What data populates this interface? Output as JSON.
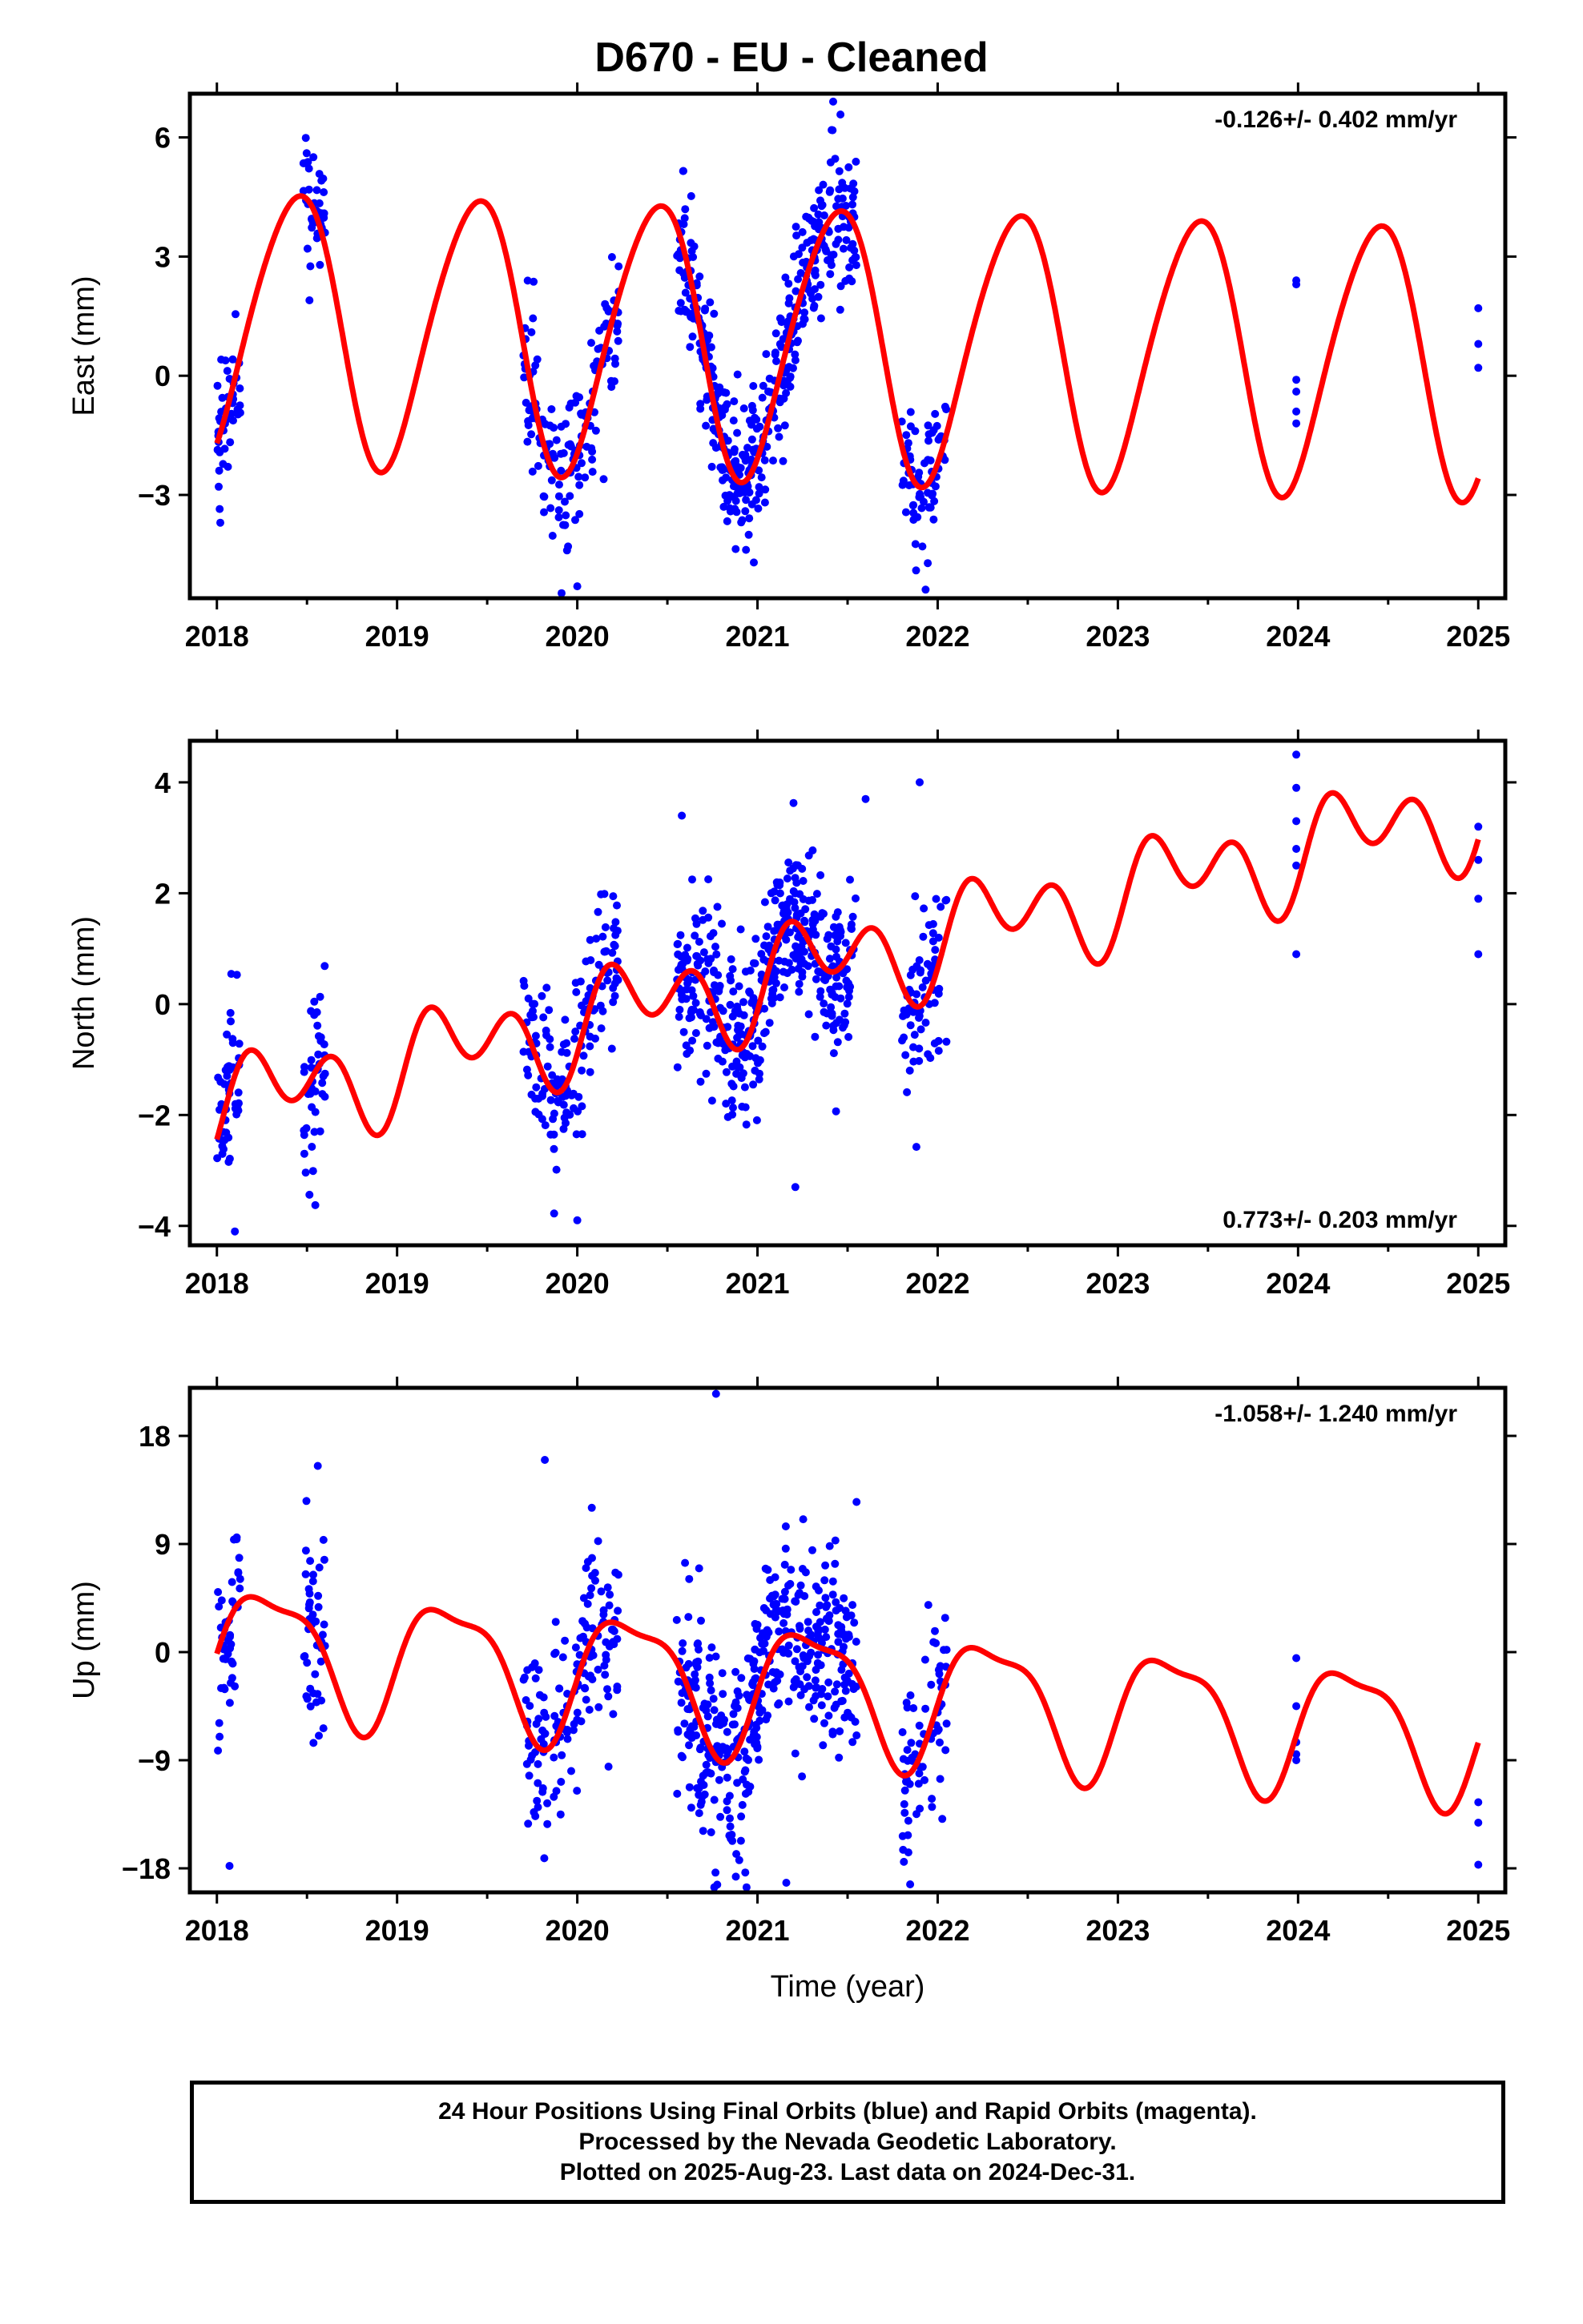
{
  "title": "D670  - EU - Cleaned",
  "footer": {
    "line1": "24 Hour Positions Using Final Orbits (blue) and Rapid Orbits (magenta).",
    "line2": "Processed by the Nevada Geodetic Laboratory.",
    "line3": "Plotted on 2025-Aug-23. Last data on 2024-Dec-31."
  },
  "colors": {
    "points": "#0000ff",
    "model": "#ff0000",
    "axes": "#000000"
  },
  "chart_data": [
    {
      "type": "scatter",
      "ylabel": "East (mm)",
      "xlabel": "",
      "rate_label": "-0.126+/- 0.402 mm/yr",
      "rate_position": "top-right",
      "xlim": [
        2017.85,
        2025.15
      ],
      "ylim": [
        -5.6,
        7.1
      ],
      "xticks": [
        2018,
        2019,
        2020,
        2021,
        2022,
        2023,
        2024,
        2025
      ],
      "yticks": [
        -3,
        0,
        3,
        6
      ],
      "grid": false,
      "model": {
        "offset": 1.3,
        "trend": -0.126,
        "amp1": 3.4,
        "phase1": -1.15,
        "amp2": 0.35,
        "phase2": 0.3,
        "noise": 0.9
      },
      "clusters": [
        [
          2018.0,
          2018.13,
          45
        ],
        [
          2018.48,
          2018.6,
          45
        ],
        [
          2019.7,
          2020.23,
          150
        ],
        [
          2020.55,
          2021.55,
          420
        ],
        [
          2021.8,
          2022.05,
          70
        ]
      ],
      "isolated": [
        [
          2023.99,
          2.3
        ],
        [
          2023.99,
          2.4
        ],
        [
          2023.99,
          -0.1
        ],
        [
          2023.99,
          -0.4
        ],
        [
          2023.99,
          -0.9
        ],
        [
          2023.99,
          -1.2
        ],
        [
          2025.0,
          1.7
        ],
        [
          2025.0,
          0.8
        ],
        [
          2025.0,
          0.2
        ]
      ],
      "extremes": [
        [
          2020.0,
          -5.3
        ],
        [
          2021.42,
          6.9
        ],
        [
          2021.88,
          -4.9
        ],
        [
          2020.98,
          -4.7
        ]
      ]
    },
    {
      "type": "scatter",
      "ylabel": "North (mm)",
      "xlabel": "",
      "rate_label": "0.773+/- 0.203 mm/yr",
      "rate_position": "bottom-right",
      "xlim": [
        2017.85,
        2025.15
      ],
      "ylim": [
        -4.35,
        4.75
      ],
      "xticks": [
        2018,
        2019,
        2020,
        2021,
        2022,
        2023,
        2024,
        2025
      ],
      "yticks": [
        -4,
        -2,
        0,
        2,
        4
      ],
      "grid": false,
      "model": {
        "offset": -1.9,
        "trend": 0.773,
        "amp1": 0.55,
        "phase1": -0.55,
        "amp2": 0.65,
        "phase2": -0.4,
        "noise": 0.8
      },
      "clusters": [
        [
          2018.0,
          2018.13,
          45
        ],
        [
          2018.48,
          2018.6,
          45
        ],
        [
          2019.7,
          2020.23,
          150
        ],
        [
          2020.55,
          2021.55,
          420
        ],
        [
          2021.8,
          2022.05,
          70
        ]
      ],
      "isolated": [
        [
          2023.99,
          4.5
        ],
        [
          2023.99,
          3.9
        ],
        [
          2023.99,
          3.3
        ],
        [
          2023.99,
          2.8
        ],
        [
          2023.99,
          2.5
        ],
        [
          2023.99,
          0.9
        ],
        [
          2025.0,
          3.2
        ],
        [
          2025.0,
          2.6
        ],
        [
          2025.0,
          1.9
        ],
        [
          2025.0,
          0.9
        ]
      ],
      "extremes": [
        [
          2020.0,
          -3.9
        ],
        [
          2018.1,
          -4.1
        ],
        [
          2021.21,
          -3.3
        ],
        [
          2021.9,
          4.0
        ],
        [
          2020.58,
          3.4
        ],
        [
          2021.6,
          3.7
        ]
      ]
    },
    {
      "type": "scatter",
      "ylabel": "Up (mm)",
      "xlabel": "Time (year)",
      "rate_label": "-1.058+/- 1.240 mm/yr",
      "rate_position": "top-right",
      "xlim": [
        2017.85,
        2025.15
      ],
      "ylim": [
        -20,
        22
      ],
      "xticks": [
        2018,
        2019,
        2020,
        2021,
        2022,
        2023,
        2024,
        2025
      ],
      "yticks": [
        -18,
        -9,
        0,
        9,
        18
      ],
      "grid": false,
      "model": {
        "offset": 0.5,
        "trend": -1.058,
        "amp1": 5.2,
        "phase1": -0.3,
        "amp2": 1.6,
        "phase2": 0.6,
        "noise": 4.2
      },
      "clusters": [
        [
          2018.0,
          2018.13,
          45
        ],
        [
          2018.48,
          2018.6,
          45
        ],
        [
          2019.7,
          2020.23,
          150
        ],
        [
          2020.55,
          2021.55,
          420
        ],
        [
          2021.8,
          2022.05,
          70
        ]
      ],
      "isolated": [
        [
          2023.99,
          -0.5
        ],
        [
          2023.99,
          -4.5
        ],
        [
          2023.99,
          -7.5
        ],
        [
          2023.99,
          -8.5
        ],
        [
          2023.99,
          -9.0
        ],
        [
          2025.0,
          -12.5
        ],
        [
          2025.0,
          -14.2
        ],
        [
          2025.0,
          -17.7
        ]
      ],
      "extremes": [
        [
          2020.77,
          21.5
        ],
        [
          2021.16,
          -19.2
        ],
        [
          2018.07,
          -17.8
        ],
        [
          2019.82,
          16.0
        ],
        [
          2018.56,
          15.5
        ],
        [
          2021.55,
          12.5
        ]
      ]
    }
  ]
}
